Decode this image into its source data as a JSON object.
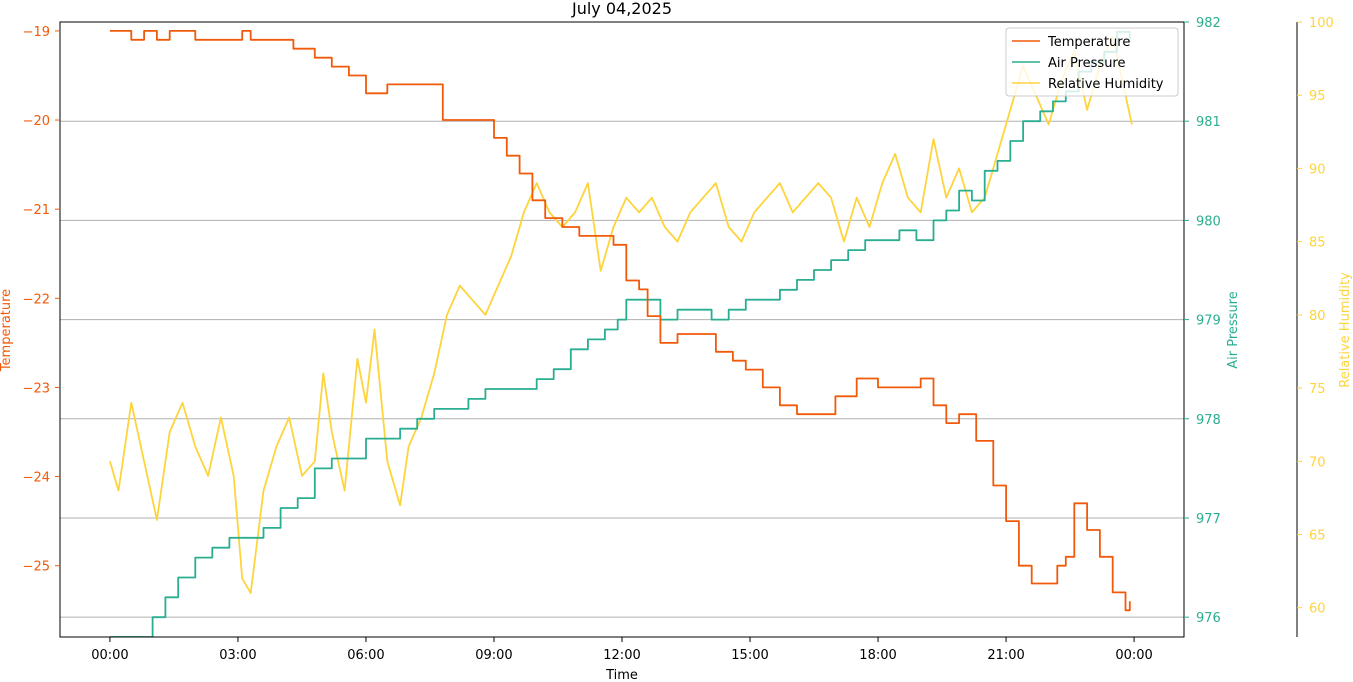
{
  "chart_data": {
    "type": "line",
    "title": "July 04,2025",
    "xlabel": "Time",
    "x_ticks": [
      "00:00",
      "03:00",
      "06:00",
      "09:00",
      "12:00",
      "15:00",
      "18:00",
      "21:00",
      "00:00"
    ],
    "x_hours_range": [
      -1.17,
      25.17
    ],
    "grid": "horizontal",
    "legend_position": "upper right",
    "axes": {
      "temperature": {
        "label": "Temperature",
        "color": "#f05a0a",
        "ylim": [
          -25.8,
          -18.9
        ],
        "ticks": [
          -25,
          -24,
          -23,
          -22,
          -21,
          -20,
          -19
        ],
        "tick_labels": [
          "−25",
          "−24",
          "−23",
          "−22",
          "−21",
          "−20",
          "−19"
        ]
      },
      "pressure": {
        "label": "Air Pressure",
        "color": "#2aae91",
        "ylim": [
          975.8,
          982.0
        ],
        "ticks": [
          976,
          977,
          978,
          979,
          980,
          981,
          982
        ],
        "tick_labels": [
          "976",
          "977",
          "978",
          "979",
          "980",
          "981",
          "982"
        ]
      },
      "humidity": {
        "label": "Relative Humidity",
        "color": "#fed43c",
        "ylim": [
          58,
          100
        ],
        "ticks": [
          60,
          65,
          70,
          75,
          80,
          85,
          90,
          95,
          100
        ],
        "tick_labels": [
          "60",
          "65",
          "70",
          "75",
          "80",
          "85",
          "90",
          "95",
          "100"
        ]
      }
    },
    "series": [
      {
        "name": "Temperature",
        "axis": "temperature",
        "color": "#f05a0a",
        "x_hours": [
          0,
          0.5,
          0.8,
          1.1,
          1.4,
          2.0,
          3.0,
          3.1,
          3.3,
          3.6,
          4.3,
          4.8,
          5.2,
          5.6,
          6.0,
          6.5,
          7.0,
          7.5,
          7.8,
          8.5,
          9.0,
          9.3,
          9.6,
          9.9,
          10.2,
          10.6,
          11.0,
          11.5,
          11.8,
          12.1,
          12.4,
          12.6,
          12.9,
          13.3,
          13.7,
          14.2,
          14.6,
          14.9,
          15.3,
          15.7,
          16.1,
          16.5,
          17.0,
          17.5,
          18.0,
          18.4,
          18.8,
          19.0,
          19.3,
          19.6,
          19.9,
          20.3,
          20.7,
          21.0,
          21.3,
          21.6,
          21.9,
          22.2,
          22.4,
          22.6,
          22.9,
          23.2,
          23.5,
          23.8,
          23.9
        ],
        "values": [
          -19.0,
          -19.1,
          -19.0,
          -19.1,
          -19.0,
          -19.1,
          -19.1,
          -19.0,
          -19.1,
          -19.1,
          -19.2,
          -19.3,
          -19.4,
          -19.5,
          -19.7,
          -19.6,
          -19.6,
          -19.6,
          -20.0,
          -20.0,
          -20.2,
          -20.4,
          -20.6,
          -20.9,
          -21.1,
          -21.2,
          -21.3,
          -21.3,
          -21.4,
          -21.8,
          -21.9,
          -22.2,
          -22.5,
          -22.4,
          -22.4,
          -22.6,
          -22.7,
          -22.8,
          -23.0,
          -23.2,
          -23.3,
          -23.3,
          -23.1,
          -22.9,
          -23.0,
          -23.0,
          -23.0,
          -22.9,
          -23.2,
          -23.4,
          -23.3,
          -23.6,
          -24.1,
          -24.5,
          -25.0,
          -25.2,
          -25.2,
          -25.0,
          -24.9,
          -24.3,
          -24.6,
          -24.9,
          -25.3,
          -25.5,
          -25.4
        ]
      },
      {
        "name": "Air Pressure",
        "axis": "pressure",
        "color": "#2aae91",
        "x_hours": [
          0,
          0.7,
          1.0,
          1.3,
          1.6,
          2.0,
          2.4,
          2.8,
          3.2,
          3.6,
          4.0,
          4.4,
          4.8,
          5.2,
          5.6,
          6.0,
          6.4,
          6.8,
          7.2,
          7.6,
          8.0,
          8.4,
          8.8,
          9.2,
          9.6,
          10.0,
          10.4,
          10.8,
          11.2,
          11.6,
          11.9,
          12.1,
          12.5,
          12.9,
          13.3,
          13.7,
          14.1,
          14.5,
          14.9,
          15.3,
          15.7,
          16.1,
          16.5,
          16.9,
          17.3,
          17.7,
          18.1,
          18.5,
          18.9,
          19.3,
          19.6,
          19.9,
          20.2,
          20.5,
          20.8,
          21.1,
          21.4,
          21.8,
          22.1,
          22.4,
          22.7,
          23.0,
          23.3,
          23.6,
          23.9
        ],
        "values": [
          975.8,
          975.8,
          976.0,
          976.2,
          976.4,
          976.6,
          976.7,
          976.8,
          976.8,
          976.9,
          977.1,
          977.2,
          977.5,
          977.6,
          977.6,
          977.8,
          977.8,
          977.9,
          978.0,
          978.1,
          978.1,
          978.2,
          978.3,
          978.3,
          978.3,
          978.4,
          978.5,
          978.7,
          978.8,
          978.9,
          979.0,
          979.2,
          979.2,
          979.0,
          979.1,
          979.1,
          979.0,
          979.1,
          979.2,
          979.2,
          979.3,
          979.4,
          979.5,
          979.6,
          979.7,
          979.8,
          979.8,
          979.9,
          979.8,
          980.0,
          980.1,
          980.3,
          980.2,
          980.5,
          980.6,
          980.8,
          981.0,
          981.1,
          981.2,
          981.3,
          981.5,
          981.6,
          981.7,
          981.9,
          981.8
        ]
      },
      {
        "name": "Relative Humidity",
        "axis": "humidity",
        "color": "#fed43c",
        "x_hours": [
          0,
          0.2,
          0.5,
          0.8,
          1.1,
          1.4,
          1.7,
          2.0,
          2.3,
          2.6,
          2.9,
          3.1,
          3.3,
          3.6,
          3.9,
          4.2,
          4.5,
          4.8,
          5.0,
          5.2,
          5.5,
          5.8,
          6.0,
          6.2,
          6.5,
          6.8,
          7.0,
          7.3,
          7.6,
          7.9,
          8.2,
          8.5,
          8.8,
          9.1,
          9.4,
          9.7,
          10.0,
          10.3,
          10.6,
          10.9,
          11.2,
          11.5,
          11.8,
          12.1,
          12.4,
          12.7,
          13.0,
          13.3,
          13.6,
          13.9,
          14.2,
          14.5,
          14.8,
          15.1,
          15.4,
          15.7,
          16.0,
          16.3,
          16.6,
          16.9,
          17.2,
          17.5,
          17.8,
          18.1,
          18.4,
          18.7,
          19.0,
          19.3,
          19.6,
          19.9,
          20.2,
          20.5,
          20.8,
          21.1,
          21.4,
          21.7,
          22.0,
          22.3,
          22.6,
          22.9,
          23.2,
          23.5,
          23.8,
          23.95
        ],
        "values": [
          70,
          68,
          74,
          70,
          66,
          72,
          74,
          71,
          69,
          73,
          69,
          62,
          61,
          68,
          71,
          73,
          69,
          70,
          76,
          72,
          68,
          77,
          74,
          79,
          70,
          67,
          71,
          73,
          76,
          80,
          82,
          81,
          80,
          82,
          84,
          87,
          89,
          87,
          86,
          87,
          89,
          83,
          86,
          88,
          87,
          88,
          86,
          85,
          87,
          88,
          89,
          86,
          85,
          87,
          88,
          89,
          87,
          88,
          89,
          88,
          85,
          88,
          86,
          89,
          91,
          88,
          87,
          92,
          88,
          90,
          87,
          88,
          91,
          94,
          97,
          95,
          93,
          96,
          98,
          94,
          97,
          99,
          95,
          93
        ]
      }
    ]
  }
}
